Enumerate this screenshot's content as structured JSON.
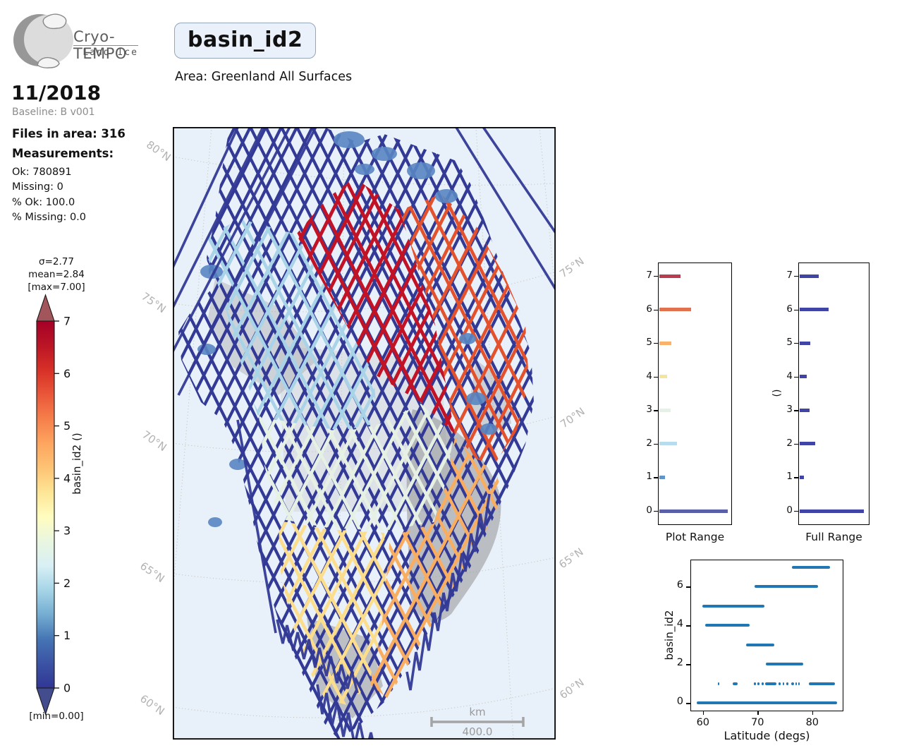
{
  "header": {
    "logo_brand": "Cryo-TEMPO",
    "logo_sub": "Land Ice",
    "title": "basin_id2",
    "area_label": "Area: Greenland All Surfaces",
    "date": "11/2018",
    "baseline": "Baseline: B v001"
  },
  "stats": {
    "files_label": "Files in area: 316",
    "measurements_label": "Measurements:",
    "ok": "Ok: 780891",
    "missing": "Missing: 0",
    "pct_ok": "% Ok: 100.0",
    "pct_missing": "% Missing: 0.0"
  },
  "colorbar": {
    "sigma": "σ=2.77",
    "mean": "mean=2.84",
    "max": "[max=7.00]",
    "min": "[min=0.00]",
    "axis_label": "basin_id2 ()",
    "ticks": [
      0,
      1,
      2,
      3,
      4,
      5,
      6,
      7
    ],
    "gradient_bottom_to_top": [
      "#313695",
      "#3b53a4",
      "#4575b4",
      "#74add1",
      "#a6d5e7",
      "#d8eff5",
      "#e9f6e0",
      "#fffdbf",
      "#fee596",
      "#fdc374",
      "#fda55f",
      "#f67f4b",
      "#ea5739",
      "#d73027",
      "#bb1526",
      "#a50026"
    ],
    "over_arrow_color": "#a2565c",
    "under_arrow_color": "#434c8c"
  },
  "map": {
    "ocean_color": "#e8f0fa",
    "lat_labels_left": [
      "80°N",
      "75°N",
      "70°N",
      "65°N",
      "60°N"
    ],
    "lat_labels_right": [
      "75°N",
      "70°N",
      "65°N",
      "60°N"
    ],
    "scale_unit": "km",
    "scale_value": "400.0",
    "basin_colors": {
      "0": "#333a96",
      "1": "#5886c2",
      "2": "#a9d4e8",
      "3": "#e6f1e4",
      "4": "#fcdd8b",
      "5": "#f8ad61",
      "6": "#e4512d",
      "7": "#c11325"
    }
  },
  "chart_data": [
    {
      "type": "bar",
      "title": "Plot Range",
      "orientation": "horizontal",
      "categories": [
        0,
        1,
        2,
        3,
        4,
        5,
        6,
        7
      ],
      "values_frac_of_axis": [
        0.93,
        0.085,
        0.24,
        0.155,
        0.11,
        0.165,
        0.43,
        0.295
      ],
      "bar_colors": [
        "#5a60a8",
        "#6394c7",
        "#b7dcee",
        "#e4f1e7",
        "#f5e49c",
        "#f9b267",
        "#e2714e",
        "#b93c51"
      ],
      "ylim": [
        -0.42,
        7.4
      ],
      "grid": false
    },
    {
      "type": "bar",
      "title": "Full Range",
      "ylabel": "()",
      "orientation": "horizontal",
      "categories": [
        0,
        1,
        2,
        3,
        4,
        5,
        6,
        7
      ],
      "values_frac_of_axis": [
        0.91,
        0.065,
        0.225,
        0.145,
        0.1,
        0.15,
        0.41,
        0.275
      ],
      "bar_color": "#4045a5",
      "ylim": [
        -0.42,
        7.4
      ],
      "grid": false
    },
    {
      "type": "scatter",
      "xlabel": "Latitude (degs)",
      "ylabel": "basin_id2",
      "xticks": [
        60,
        70,
        80
      ],
      "yticks": [
        0,
        2,
        4,
        6
      ],
      "xlim": [
        57.7,
        85.7
      ],
      "ylim": [
        -0.42,
        7.4
      ],
      "point_color": "#2077b4",
      "segments": [
        {
          "y": 0,
          "spans": [
            [
              58.9,
              84.6
            ]
          ]
        },
        {
          "y": 1,
          "spans": [
            [
              62.7,
              63.0
            ],
            [
              65.4,
              66.4
            ],
            [
              69.3,
              69.7
            ],
            [
              69.9,
              70.3
            ],
            [
              70.7,
              71.1
            ],
            [
              71.4,
              73.4
            ],
            [
              73.8,
              74.2
            ],
            [
              74.6,
              74.9
            ],
            [
              75.3,
              75.6
            ],
            [
              76.1,
              76.7
            ],
            [
              76.9,
              77.2
            ],
            [
              77.4,
              77.7
            ],
            [
              79.4,
              84.1
            ]
          ]
        },
        {
          "y": 2,
          "spans": [
            [
              71.5,
              78.3
            ]
          ]
        },
        {
          "y": 3,
          "spans": [
            [
              67.9,
              73.1
            ]
          ]
        },
        {
          "y": 4,
          "spans": [
            [
              60.4,
              68.6
            ]
          ]
        },
        {
          "y": 5,
          "spans": [
            [
              59.9,
              71.2
            ]
          ]
        },
        {
          "y": 6,
          "spans": [
            [
              69.5,
              81.0
            ]
          ]
        },
        {
          "y": 7,
          "spans": [
            [
              76.3,
              83.2
            ]
          ]
        }
      ]
    }
  ]
}
